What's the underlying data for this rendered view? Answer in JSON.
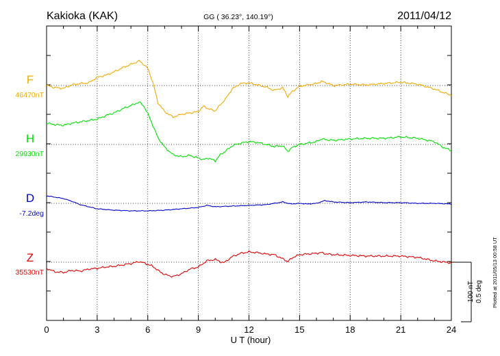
{
  "header": {
    "station": "Kakioka (KAK)",
    "coords": "GG ( 36.23°, 140.19°)",
    "date": "2011/04/12"
  },
  "side_note": "Plotted at 2011/05/13 00:58 UT",
  "scale_note": {
    "line1": "100 nT",
    "line2": "0.5 deg"
  },
  "chart_data": {
    "type": "line",
    "xlabel": "U T (hour)",
    "xlim": [
      0,
      24
    ],
    "xticks": [
      "0",
      "3",
      "6",
      "9",
      "12",
      "15",
      "18",
      "21",
      "24"
    ],
    "grid": true,
    "series": [
      {
        "name": "F",
        "baseline_label": "46470nT",
        "color": "#f5a800",
        "x": [
          0,
          0.5,
          1,
          1.5,
          2,
          2.5,
          3,
          3.5,
          4,
          4.5,
          5,
          5.3,
          5.5,
          5.8,
          6,
          6.3,
          6.6,
          7,
          7.5,
          8,
          8.5,
          9,
          9.3,
          9.6,
          10,
          10.3,
          10.6,
          11,
          11.5,
          12,
          12.5,
          13,
          13.5,
          14,
          14.3,
          14.6,
          15,
          15.5,
          16,
          16.3,
          16.6,
          17,
          18,
          19,
          20,
          21,
          22,
          23,
          23.5,
          24
        ],
        "y": [
          0,
          -3,
          -4,
          1,
          3,
          4,
          12,
          15,
          20,
          26,
          31,
          34,
          36,
          30,
          25,
          5,
          -25,
          -38,
          -46,
          -42,
          -40,
          -38,
          -30,
          -34,
          -37,
          -28,
          -20,
          -5,
          3,
          4,
          1,
          -2,
          -7,
          -3,
          -16,
          -8,
          -1,
          1,
          3,
          6,
          4,
          0,
          2,
          1,
          3,
          5,
          2,
          -5,
          -10,
          -14
        ]
      },
      {
        "name": "H",
        "baseline_label": "29930nT",
        "color": "#00e000",
        "x": [
          0,
          0.5,
          1,
          1.5,
          2,
          2.5,
          3,
          3.5,
          4,
          4.5,
          5,
          5.3,
          5.5,
          5.8,
          6,
          6.3,
          6.6,
          7,
          7.5,
          8,
          8.5,
          9,
          9.3,
          9.6,
          10,
          10.3,
          10.6,
          11,
          11.5,
          12,
          12.5,
          13,
          13.5,
          14,
          14.3,
          14.6,
          15,
          15.5,
          16,
          16.3,
          16.6,
          17,
          18,
          19,
          20,
          21,
          22,
          23,
          23.5,
          24
        ],
        "y": [
          31,
          29,
          28,
          31,
          33,
          35,
          37,
          42,
          46,
          52,
          57,
          60,
          62,
          55,
          45,
          28,
          10,
          -4,
          -15,
          -18,
          -16,
          -20,
          -22,
          -20,
          -24,
          -15,
          -10,
          -2,
          2,
          4,
          3,
          0,
          -3,
          -2,
          -10,
          -4,
          0,
          2,
          4,
          8,
          7,
          6,
          8,
          9,
          9,
          11,
          9,
          4,
          -4,
          -9
        ]
      },
      {
        "name": "D",
        "baseline_label": "-7.2deg",
        "color": "#0000cc",
        "x": [
          0,
          1,
          1.5,
          2,
          2.5,
          3,
          3.5,
          4,
          5,
          6,
          7,
          8,
          9,
          9.5,
          10,
          11,
          12,
          13,
          13.5,
          14,
          14.5,
          15,
          15.5,
          16,
          16.5,
          17,
          18,
          19,
          20,
          21,
          22,
          23,
          24
        ],
        "y": [
          11,
          7,
          3,
          -2,
          -5,
          -8,
          -9,
          -10,
          -11,
          -11,
          -10,
          -8,
          -6,
          -3,
          -5,
          -4,
          -3,
          -2,
          0,
          2,
          -1,
          0,
          -1,
          0,
          4,
          2,
          1,
          2,
          1,
          1,
          0,
          0,
          -1
        ]
      },
      {
        "name": "Z",
        "baseline_label": "35530nT",
        "color": "#e00000",
        "x": [
          0,
          0.5,
          1,
          1.5,
          2,
          2.5,
          3,
          3.5,
          4,
          4.5,
          5,
          5.5,
          6,
          6.3,
          6.6,
          7,
          7.5,
          8,
          8.5,
          9,
          9.5,
          10,
          10.5,
          11,
          11.5,
          12,
          12.5,
          13,
          13.5,
          14,
          14.3,
          14.6,
          15,
          15.5,
          16,
          16.3,
          16.6,
          17,
          18,
          19,
          20,
          21,
          22,
          23,
          24
        ],
        "y": [
          -9,
          -14,
          -15,
          -12,
          -13,
          -10,
          -9,
          -7,
          -6,
          -4,
          -2,
          1,
          -3,
          -6,
          -12,
          -18,
          -21,
          -17,
          -10,
          -7,
          2,
          4,
          -1,
          8,
          13,
          15,
          14,
          12,
          11,
          5,
          1,
          7,
          11,
          12,
          13,
          14,
          12,
          11,
          10,
          9,
          9,
          9,
          7,
          2,
          -1
        ]
      }
    ]
  }
}
